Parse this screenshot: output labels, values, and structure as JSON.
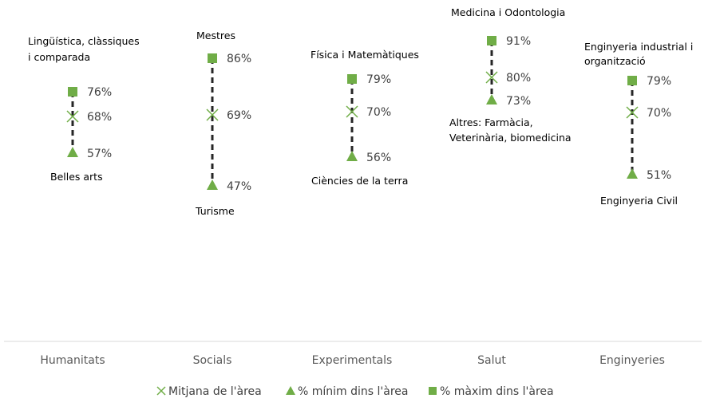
{
  "chart_data": {
    "type": "scatter",
    "title": "",
    "categories": [
      "Humanitats",
      "Socials",
      "Experimentals",
      "Salut",
      "Enginyeries"
    ],
    "series": [
      {
        "name": "% màxim dins l'àrea",
        "marker": "square",
        "values": [
          76,
          86,
          79,
          91,
          79
        ]
      },
      {
        "name": "Mitjana de l'àrea",
        "marker": "x",
        "values": [
          68,
          69,
          70,
          80,
          70
        ]
      },
      {
        "name": "% mínim dins l'àrea",
        "marker": "triangle",
        "values": [
          57,
          47,
          56,
          73,
          51
        ]
      }
    ],
    "value_labels": {
      "max": [
        "76%",
        "86%",
        "79%",
        "91%",
        "79%"
      ],
      "mean": [
        "68%",
        "69%",
        "70%",
        "80%",
        "70%"
      ],
      "min": [
        "57%",
        "47%",
        "56%",
        "73%",
        "51%"
      ]
    },
    "annotations": {
      "max": [
        [
          "Lingüística, clàssiques",
          "i comparada"
        ],
        [
          "Mestres"
        ],
        [
          "Física i Matemàtiques"
        ],
        [
          "Medicina i Odontologia"
        ],
        [
          "Enginyeria industrial i",
          "organització"
        ]
      ],
      "min": [
        [
          "Belles arts"
        ],
        [
          "Turisme"
        ],
        [
          "Ciències de la terra"
        ],
        [
          "Altres: Farmàcia,",
          "Veterinària, biomedicina"
        ],
        [
          "Enginyeria Civil"
        ]
      ]
    },
    "legend_position": "bottom",
    "grid": false,
    "colors": {
      "marker": "#70ad47",
      "line": "#262626",
      "axis": "#d9d9d9"
    }
  }
}
